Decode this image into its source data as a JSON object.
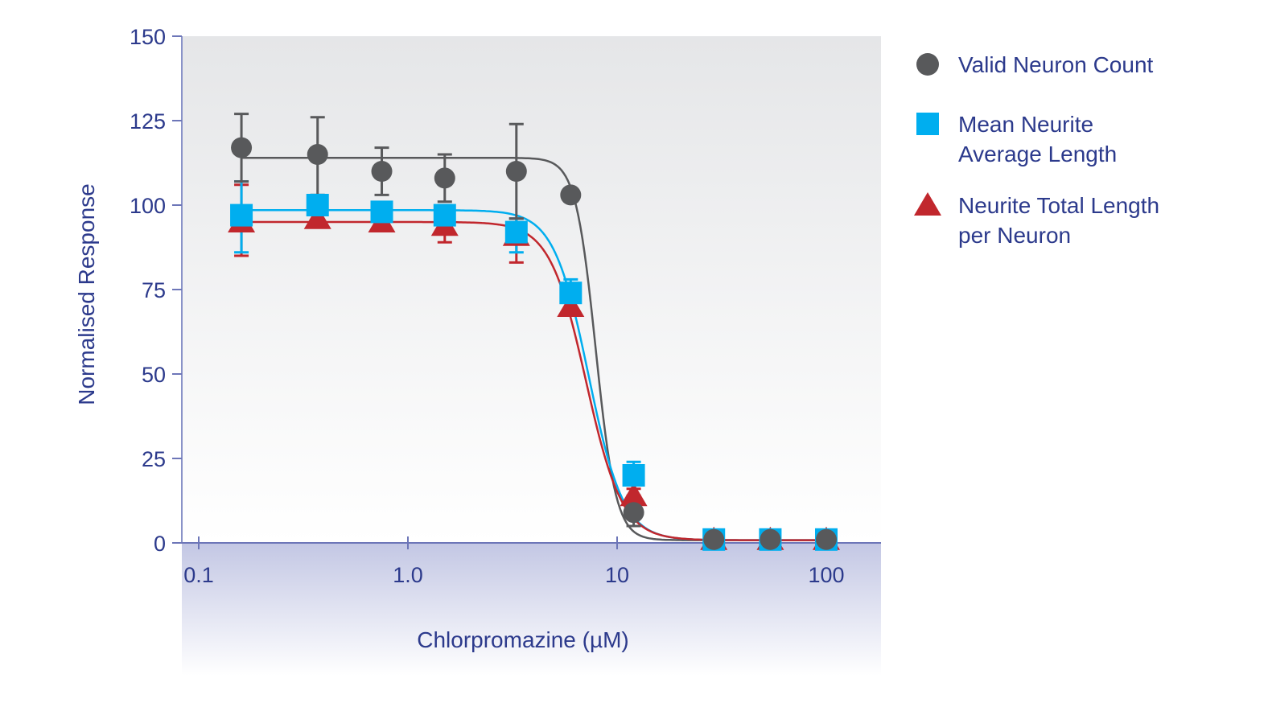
{
  "chart_data": {
    "type": "scatter",
    "xlabel": "Chlorpromazine (µM)",
    "ylabel": "Normalised Response",
    "xscale": "log",
    "xlim": [
      0.1,
      150
    ],
    "ylim": [
      0,
      150
    ],
    "xticks": [
      {
        "v": 0.1,
        "label": "0.1"
      },
      {
        "v": 1,
        "label": "1.0"
      },
      {
        "v": 10,
        "label": "10"
      },
      {
        "v": 100,
        "label": "100"
      }
    ],
    "yticks": [
      0,
      25,
      50,
      75,
      100,
      125,
      150
    ],
    "grid": false,
    "legend_placement": "right",
    "x": [
      0.16,
      0.37,
      0.75,
      1.5,
      3.3,
      6.0,
      12,
      29,
      54,
      100
    ],
    "series": [
      {
        "name": "Valid Neuron Count",
        "marker": "circle",
        "color": "#58595b",
        "values": [
          117,
          115,
          110,
          108,
          110,
          103,
          9,
          1,
          1,
          1
        ],
        "errors": [
          [
            107,
            127
          ],
          [
            103,
            126
          ],
          [
            103,
            117
          ],
          [
            101,
            115
          ],
          [
            96,
            124
          ],
          [
            103,
            103
          ],
          [
            5,
            9
          ],
          [
            1,
            1
          ],
          [
            1,
            1
          ],
          [
            1,
            1
          ]
        ],
        "fit": true
      },
      {
        "name": "Mean Neurite Average Length",
        "marker": "square",
        "color": "#00aeef",
        "values": [
          97,
          100,
          98,
          97,
          92,
          74,
          20,
          1,
          1,
          1
        ],
        "errors": [
          [
            86,
            107
          ],
          [
            100,
            103
          ],
          [
            98,
            98
          ],
          [
            96,
            100
          ],
          [
            86,
            96
          ],
          [
            74,
            78
          ],
          [
            20,
            24
          ],
          [
            1,
            1
          ],
          [
            1,
            1
          ],
          [
            1,
            1
          ]
        ],
        "fit": true
      },
      {
        "name": "Neurite Total Length per Neuron",
        "marker": "triangle",
        "color": "#c1272d",
        "values": [
          95,
          96,
          95,
          94,
          91,
          70,
          14,
          1,
          1,
          1
        ],
        "errors": [
          [
            85,
            106
          ],
          [
            96,
            96
          ],
          [
            95,
            95
          ],
          [
            89,
            100
          ],
          [
            83,
            96
          ],
          [
            70,
            70
          ],
          [
            14,
            16
          ],
          [
            1,
            1
          ],
          [
            1,
            1
          ],
          [
            1,
            1
          ]
        ],
        "fit": true
      }
    ]
  },
  "legend": [
    {
      "lines": [
        "Valid Neuron Count"
      ]
    },
    {
      "lines": [
        "Mean Neurite",
        "Average Length"
      ]
    },
    {
      "lines": [
        "Neurite Total Length",
        "per Neuron"
      ]
    }
  ]
}
